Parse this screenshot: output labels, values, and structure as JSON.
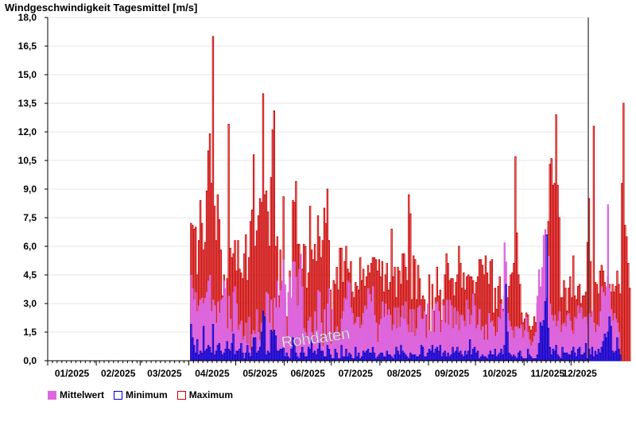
{
  "chart_data": {
    "type": "bar",
    "title": "Windgeschwindigkeit Tagesmittel [m/s]",
    "ylim": [
      0,
      18
    ],
    "yticks": [
      "0,0",
      "1,5",
      "3,0",
      "4,5",
      "6,0",
      "7,5",
      "9,0",
      "10,5",
      "12,0",
      "13,5",
      "15,0",
      "16,5",
      "18,0"
    ],
    "xticks": [
      "01/2025",
      "02/2025",
      "03/2025",
      "04/2025",
      "05/2025",
      "06/2025",
      "07/2025",
      "08/2025",
      "09/2025",
      "10/2025",
      "11/2025",
      "12/2025"
    ],
    "watermark": "Rohdaten",
    "grid": true,
    "legend_position": "bottom-left",
    "data_start_day": 91,
    "total_days": 345,
    "series": [
      {
        "name": "Mittelwert",
        "color": "#dd66dd",
        "style": "filled",
        "values": [
          4.5,
          3.8,
          3.2,
          3.6,
          2.6,
          2.9,
          3.2,
          3.3,
          3.0,
          3.3,
          3.6,
          4.2,
          4.5,
          2.6,
          3.2,
          2.9,
          2.0,
          3.1,
          2.5,
          3.2,
          3.3,
          4.2,
          3.8,
          1.7,
          3.4,
          2.2,
          1.5,
          3.6,
          3.9,
          3.0,
          1.6,
          1.9,
          2.1,
          1.1,
          1.3,
          2.0,
          0.9,
          2.3,
          0.6,
          1.4,
          1.6,
          1.4,
          2.7,
          1.5,
          1.1,
          2.0,
          2.1,
          2.1,
          3.6,
          3.5,
          2.0,
          3.2,
          1.3,
          3.3,
          2.8,
          4.2,
          2.8,
          3.7,
          4.2,
          5.3,
          4.0,
          1.2,
          3.6,
          4.4,
          3.3,
          5.2,
          5.2,
          4.4,
          2.9,
          4.8,
          5.6,
          3.9,
          1.7,
          1.5,
          1.2,
          2.1,
          2.3,
          1.5,
          1.2,
          2.6,
          1.6,
          3.7,
          3.6,
          2.0,
          0.8,
          2.7,
          1.3,
          3.0,
          3.8,
          0.9,
          2.7,
          1.5,
          1.5,
          1.8,
          1.3,
          1.2,
          2.2,
          2.6,
          3.3,
          3.2,
          4.2,
          4.1,
          2.8,
          2.5,
          1.9,
          2.0,
          2.3,
          2.3,
          1.7,
          1.9,
          2.5,
          2.9,
          2.7,
          3.8,
          3.5,
          3.1,
          3.9,
          2.4,
          2.0,
          1.0,
          1.9,
          2.2,
          3.1,
          2.3,
          3.0,
          2.4,
          2.7,
          2.4,
          1.6,
          1.9,
          2.8,
          1.7,
          2.8,
          1.8,
          2.3,
          2.9,
          2.2,
          3.1,
          1.9,
          1.5,
          2.7,
          1.5,
          2.7,
          1.3,
          1.7,
          2.8,
          2.9,
          2.2,
          2.2,
          2.6,
          1.2,
          3.0,
          1.6,
          1.5,
          2.7,
          1.5,
          3.0,
          3.1,
          2.6,
          1.5,
          2.1,
          2.9,
          2.0,
          3.2,
          1.9,
          3.2,
          2.9,
          1.7,
          2.8,
          1.9,
          2.6,
          1.6,
          2.4,
          2.4,
          2.1,
          1.8,
          3.2,
          2.7,
          1.9,
          2.4,
          3.5,
          2.9,
          1.7,
          1.9,
          2.7,
          1.6,
          1.8,
          1.1,
          1.9,
          1.1,
          2.5,
          2.0,
          2.1,
          1.8,
          1.3,
          1.5,
          2.3,
          2.2,
          3.0,
          2.6,
          6.2,
          5.2,
          2.5,
          2.1,
          1.8,
          1.6,
          1.2,
          1.8,
          1.8,
          1.7,
          1.7,
          1.9,
          1.2,
          1.6,
          2.3,
          1.5,
          1.1,
          0.8,
          1.0,
          1.3,
          1.5,
          3.4,
          4.8,
          3.9,
          4.9,
          6.6,
          6.9,
          3.3,
          5.5,
          3.0,
          2.4,
          2.1,
          2.4,
          1.8,
          2.1,
          2.6,
          1.5,
          1.9,
          2.0,
          1.8,
          2.4,
          2.5,
          2.1,
          1.6,
          1.4,
          2.3,
          2.2,
          2.9,
          2.5,
          2.8,
          2.2,
          2.3,
          2.3,
          1.9,
          2.5,
          2.3,
          2.6,
          2.0,
          1.5,
          1.9,
          1.8,
          2.6,
          3.9,
          3.6,
          3.4,
          3.9,
          8.2,
          3.8,
          2.7,
          2.1,
          2.5,
          2.2,
          2.0,
          1.5
        ]
      },
      {
        "name": "Minimum",
        "color": "#0000cc",
        "style": "outline",
        "values": [
          1.9,
          1.2,
          0.8,
          0.4,
          1.1,
          0.3,
          0.5,
          0.4,
          1.8,
          0.5,
          0.6,
          0.8,
          0.7,
          0.4,
          1.9,
          0.3,
          0.5,
          0.8,
          0.9,
          0.5,
          0.3,
          0.4,
          0.6,
          1.0,
          0.6,
          0.5,
          0.9,
          1.4,
          0.3,
          0.5,
          0.5,
          0.6,
          0.9,
          0.4,
          0.1,
          0.4,
          0.8,
          0.4,
          0.2,
          0.7,
          1.2,
          1.2,
          0.4,
          0.5,
          0.7,
          1.5,
          2.6,
          2.3,
          0.3,
          0.5,
          0.4,
          1.6,
          1.5,
          1.6,
          1.3,
          0.5,
          0.5,
          0.6,
          0.6,
          0.7,
          0.2,
          0.4,
          0.2,
          0.1,
          0.6,
          1.2,
          1.1,
          0.4,
          0.2,
          0.1,
          0.4,
          0.7,
          0.4,
          0.2,
          0.2,
          0.7,
          0.6,
          1.1,
          0.4,
          0.5,
          0.3,
          0.6,
          0.9,
          0.5,
          0.5,
          0.2,
          0.2,
          0.8,
          0.6,
          0.3,
          0.1,
          0.1,
          0.6,
          0.4,
          0.1,
          0.1,
          0.8,
          0.2,
          0.2,
          0.6,
          0.2,
          0.4,
          0.3,
          0.1,
          0.1,
          0.7,
          0.2,
          0.4,
          0.1,
          0.2,
          0.5,
          0.4,
          0.5,
          0.6,
          0.4,
          0.4,
          0.7,
          0.4,
          0.1,
          0.2,
          0.3,
          0.4,
          0.4,
          0.2,
          0.2,
          0.5,
          0.3,
          0.3,
          0.2,
          0.1,
          0.3,
          0.7,
          0.5,
          0.3,
          0.8,
          0.5,
          0.4,
          0.3,
          0.2,
          0.1,
          0.4,
          0.3,
          0.3,
          0.3,
          0.2,
          0.2,
          0.3,
          0.8,
          0.7,
          0.2,
          0.2,
          0.4,
          0.6,
          0.5,
          0.8,
          0.4,
          0.6,
          0.7,
          0.5,
          0.8,
          0.2,
          0.4,
          0.5,
          0.2,
          0.4,
          0.2,
          0.3,
          0.7,
          0.4,
          0.5,
          0.7,
          0.4,
          0.5,
          0.3,
          0.2,
          0.5,
          0.3,
          0.5,
          1.1,
          0.3,
          0.6,
          0.7,
          0.4,
          0.5,
          0.1,
          0.2,
          0.3,
          0.2,
          0.2,
          0.1,
          0.3,
          0.5,
          0.3,
          0.3,
          0.6,
          0.2,
          0.3,
          0.4,
          0.6,
          0.3,
          0.8,
          4.0,
          1.5,
          0.4,
          0.3,
          0.2,
          0.3,
          0.2,
          0.1,
          0.4,
          0.5,
          0.2,
          0.1,
          0.1,
          0.1,
          0.6,
          0.3,
          0.2,
          0.1,
          0.1,
          0.1,
          0.3,
          0.9,
          2.0,
          1.8,
          2.1,
          3.1,
          6.6,
          1.7,
          0.7,
          0.3,
          0.6,
          0.5,
          0.8,
          0.3,
          0.2,
          0.1,
          0.7,
          0.4,
          0.4,
          0.4,
          0.3,
          0.3,
          0.5,
          0.7,
          0.4,
          0.2,
          0.6,
          0.7,
          0.3,
          0.3,
          0.4,
          0.9,
          0.1,
          0.6,
          0.3,
          0.7,
          0.2,
          0.5,
          0.3,
          0.6,
          0.4,
          0.7,
          1.0,
          1.4,
          1.2,
          1.5,
          2.3,
          1.8,
          0.5,
          0.4,
          0.5,
          1.2,
          0.6,
          0.3
        ]
      },
      {
        "name": "Maximum",
        "color": "#cc0000",
        "style": "outline",
        "values": [
          7.2,
          7.1,
          6.9,
          7.0,
          4.5,
          6.3,
          8.4,
          7.2,
          5.8,
          6.2,
          8.9,
          11.0,
          11.9,
          9.3,
          17.0,
          8.1,
          6.3,
          8.7,
          7.4,
          5.8,
          3.4,
          4.5,
          3.1,
          4.3,
          12.4,
          5.9,
          5.4,
          5.6,
          6.3,
          4.7,
          6.3,
          4.8,
          4.6,
          4.3,
          5.6,
          6.6,
          4.2,
          5.4,
          7.3,
          7.9,
          10.8,
          6.0,
          6.8,
          7.6,
          8.5,
          8.3,
          14.0,
          8.7,
          8.9,
          7.8,
          6.0,
          9.6,
          12.1,
          13.1,
          6.0,
          6.5,
          3.4,
          5.8,
          3.9,
          8.6,
          3.3,
          2.3,
          2.0,
          4.7,
          3.0,
          8.4,
          8.3,
          9.4,
          6.1,
          6.1,
          4.0,
          4.8,
          6.1,
          6.0,
          3.8,
          4.6,
          8.1,
          5.8,
          5.3,
          6.1,
          5.2,
          7.6,
          6.5,
          5.4,
          6.3,
          8.0,
          7.2,
          9.0,
          6.3,
          3.7,
          2.3,
          4.2,
          4.0,
          4.9,
          3.7,
          5.9,
          5.9,
          4.1,
          5.2,
          6.0,
          4.8,
          4.6,
          5.2,
          3.6,
          3.3,
          4.1,
          3.9,
          3.7,
          5.4,
          4.2,
          4.8,
          3.9,
          4.4,
          5.0,
          4.6,
          5.1,
          5.4,
          5.4,
          5.3,
          4.7,
          5.3,
          4.4,
          5.2,
          3.6,
          4.5,
          5.1,
          3.7,
          4.1,
          6.9,
          4.4,
          4.9,
          3.3,
          4.9,
          4.7,
          4.0,
          5.6,
          5.6,
          4.9,
          4.2,
          8.7,
          7.7,
          3.2,
          5.5,
          5.3,
          3.2,
          5.0,
          4.3,
          3.2,
          3.4,
          3.2,
          2.4,
          2.0,
          4.5,
          1.5,
          4.0,
          2.6,
          3.3,
          4.9,
          3.4,
          3.7,
          2.1,
          3.2,
          4.5,
          5.6,
          5.1,
          4.2,
          4.3,
          4.3,
          3.4,
          4.1,
          4.5,
          6.0,
          5.1,
          3.8,
          4.6,
          3.7,
          4.4,
          4.5,
          4.4,
          4.4,
          4.2,
          3.5,
          4.1,
          4.4,
          5.3,
          5.3,
          5.0,
          4.5,
          5.5,
          4.6,
          4.0,
          5.2,
          5.3,
          2.5,
          3.8,
          2.7,
          3.9,
          4.4,
          3.2,
          2.7,
          3.4,
          3.0,
          3.3,
          3.9,
          4.5,
          4.6,
          5.1,
          10.7,
          6.7,
          4.5,
          4.0,
          2.5,
          2.0,
          2.2,
          2.5,
          2.4,
          1.8,
          1.6,
          1.8,
          2.3,
          2.0,
          3.0,
          2.8,
          2.2,
          1.9,
          1.9,
          2.3,
          2.8,
          7.3,
          10.3,
          10.6,
          9.2,
          9.3,
          12.9,
          9.2,
          7.5,
          3.3,
          3.3,
          4.2,
          3.8,
          2.6,
          3.8,
          4.4,
          3.3,
          5.5,
          3.4,
          3.2,
          3.9,
          4.0,
          3.0,
          3.4,
          3.4,
          3.6,
          6.2,
          8.5,
          5.2,
          2.1,
          12.3,
          4.1,
          4.0,
          3.5,
          4.7,
          5.0,
          4.7,
          4.1,
          3.6,
          4.4,
          4.0,
          3.6,
          4.0,
          3.6,
          3.9,
          4.7,
          4.0,
          3.5,
          9.3,
          13.5,
          7.1,
          6.5,
          5.1,
          3.8
        ]
      }
    ]
  }
}
